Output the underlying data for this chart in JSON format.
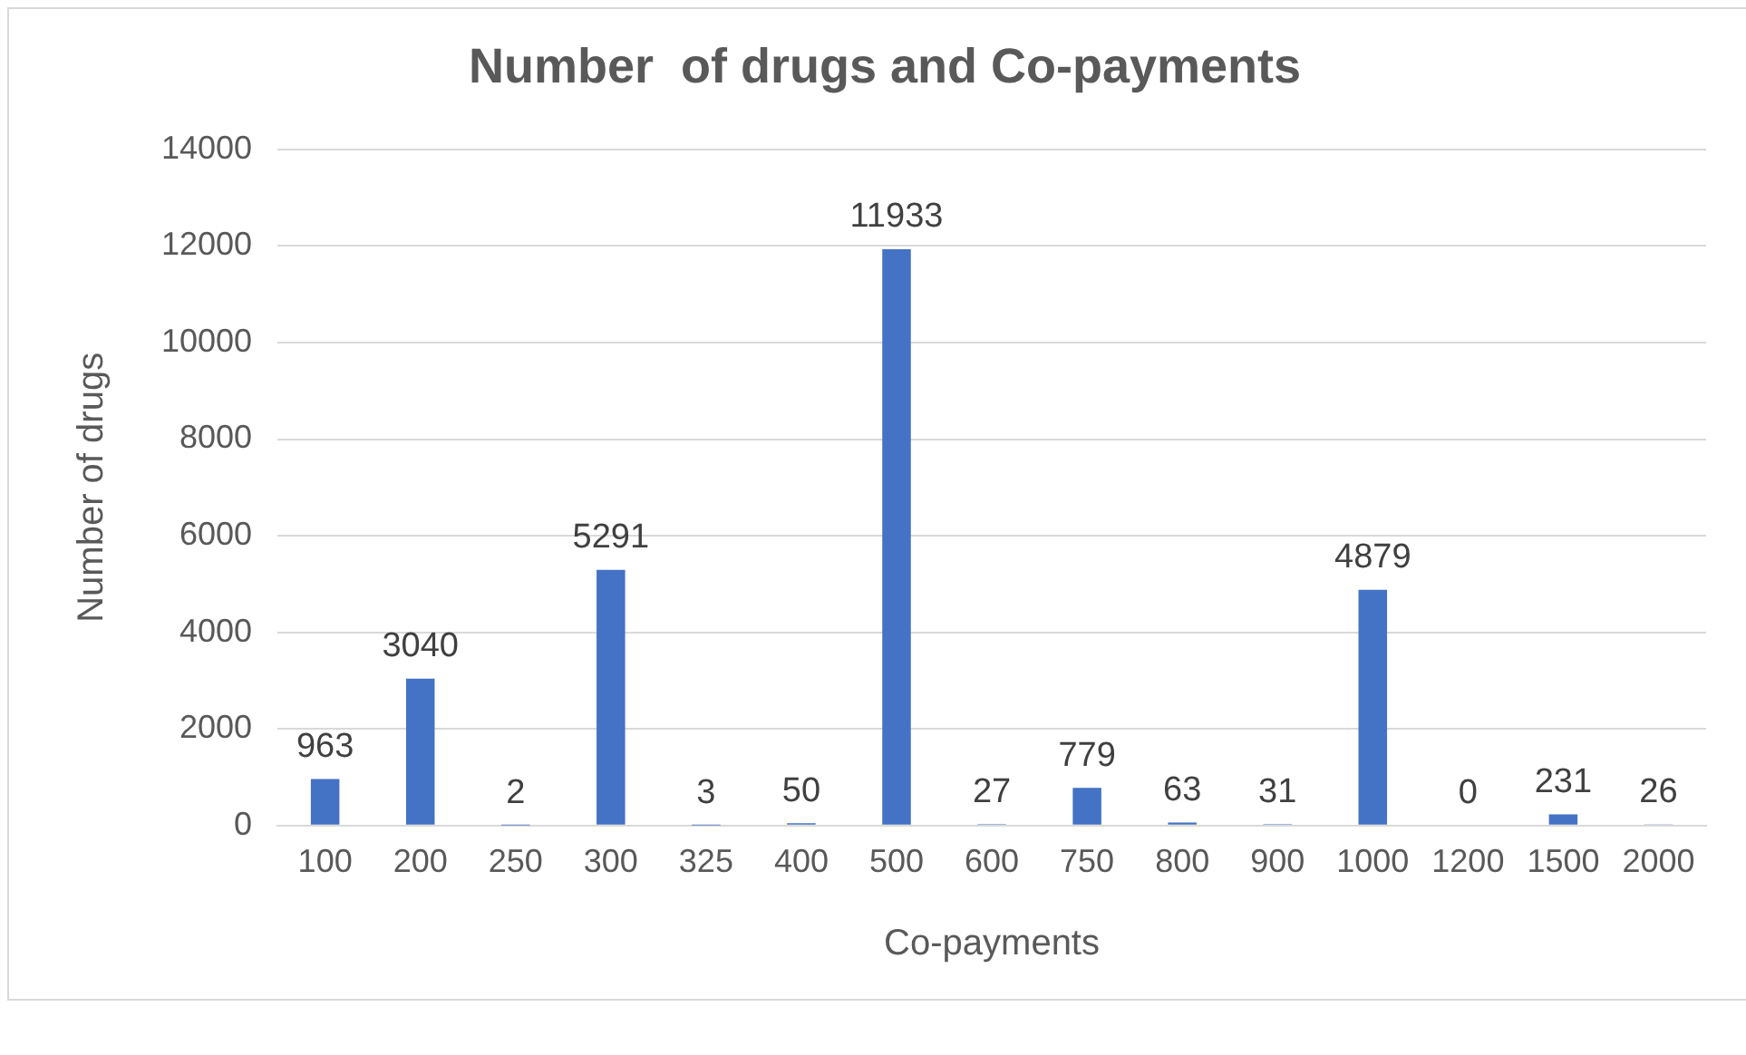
{
  "chart_data": {
    "type": "bar",
    "title": "Number  of drugs and Co-payments",
    "xlabel": "Co-payments",
    "ylabel": "Number of drugs",
    "categories": [
      "100",
      "200",
      "250",
      "300",
      "325",
      "400",
      "500",
      "600",
      "750",
      "800",
      "900",
      "1000",
      "1200",
      "1500",
      "2000"
    ],
    "values": [
      963,
      3040,
      2,
      5291,
      3,
      50,
      11933,
      27,
      779,
      63,
      31,
      4879,
      0,
      231,
      26
    ],
    "color": "#4472c4",
    "ylim": [
      0,
      14000
    ],
    "yticks": [
      0,
      2000,
      4000,
      6000,
      8000,
      10000,
      12000,
      14000
    ],
    "grid": "y",
    "data_labels": true
  }
}
